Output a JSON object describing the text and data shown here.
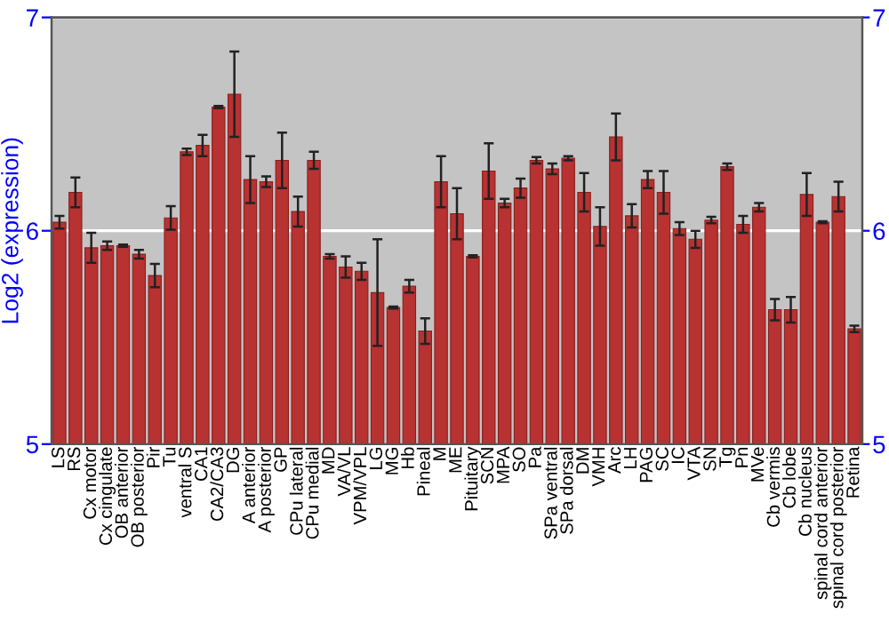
{
  "chart_data": {
    "type": "bar",
    "ylabel": "Log2 (expression)",
    "categories": [
      "LS",
      "RS",
      "Cx motor",
      "Cx cingulate",
      "OB anterior",
      "OB posterior",
      "Pir",
      "Tu",
      "ventral S",
      "CA1",
      "CA2/CA3",
      "DG",
      "A anterior",
      "A posterior",
      "GP",
      "CPu lateral",
      "CPu medial",
      "MD",
      "VA/VL",
      "VPM/VPL",
      "LG",
      "MG",
      "Hb",
      "Pineal",
      "M",
      "ME",
      "Pituitary",
      "SCN",
      "MPA",
      "SO",
      "Pa",
      "SPa ventral",
      "SPa dorsal",
      "DM",
      "VMH",
      "Arc",
      "LH",
      "PAG",
      "SC",
      "IC",
      "VTA",
      "SN",
      "Tg",
      "Pn",
      "MVe",
      "Cb vermis",
      "Cb lobe",
      "Cb nucleus",
      "spinal cord anterior",
      "spinal cord posterior",
      "Retina"
    ],
    "values": [
      6.04,
      6.18,
      5.92,
      5.93,
      5.93,
      5.89,
      5.79,
      6.06,
      6.37,
      6.4,
      6.58,
      6.64,
      6.24,
      6.23,
      6.33,
      6.09,
      6.33,
      5.88,
      5.83,
      5.81,
      5.71,
      5.64,
      5.74,
      5.53,
      6.23,
      6.08,
      5.88,
      6.28,
      6.13,
      6.2,
      6.33,
      6.29,
      6.34,
      6.18,
      6.02,
      6.44,
      6.07,
      6.24,
      6.18,
      6.01,
      5.96,
      6.05,
      6.3,
      6.03,
      6.11,
      5.63,
      5.63,
      6.17,
      6.04,
      6.16,
      5.54
    ],
    "errors": [
      0.03,
      0.07,
      0.07,
      0.02,
      0.005,
      0.02,
      0.055,
      0.055,
      0.015,
      0.05,
      0.005,
      0.2,
      0.11,
      0.025,
      0.13,
      0.07,
      0.04,
      0.01,
      0.05,
      0.04,
      0.25,
      0.005,
      0.03,
      0.06,
      0.12,
      0.12,
      0.005,
      0.13,
      0.02,
      0.045,
      0.015,
      0.025,
      0.01,
      0.09,
      0.09,
      0.11,
      0.055,
      0.04,
      0.1,
      0.03,
      0.04,
      0.015,
      0.015,
      0.04,
      0.02,
      0.05,
      0.06,
      0.1,
      0.005,
      0.07,
      0.015
    ],
    "color": "#b83232",
    "ylim": [
      5,
      7
    ],
    "yticks": [
      5,
      6,
      7
    ],
    "y2lim": [
      5,
      7
    ],
    "y2ticks": [
      5,
      6,
      7
    ],
    "grid": "y"
  }
}
